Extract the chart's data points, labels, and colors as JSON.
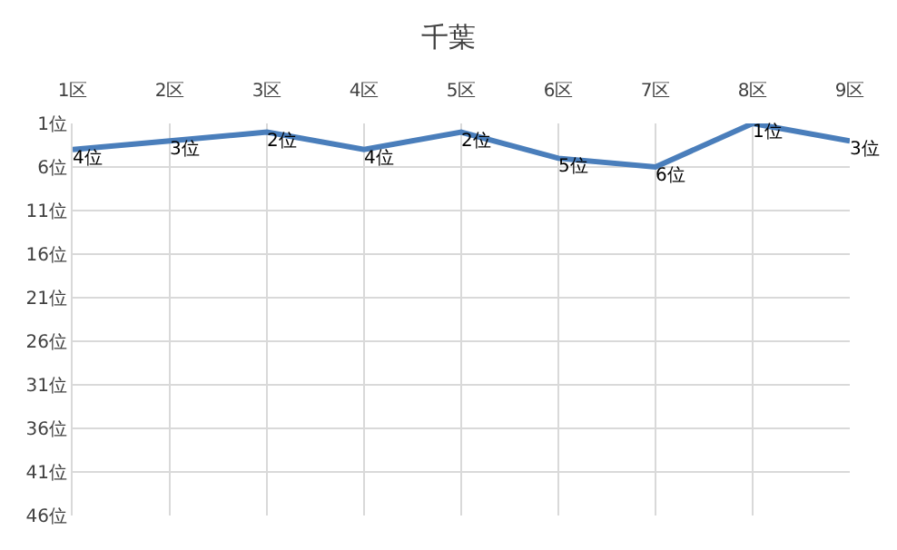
{
  "chart_data": {
    "type": "line",
    "title": "千葉",
    "categories": [
      "1区",
      "2区",
      "3区",
      "4区",
      "5区",
      "6区",
      "7区",
      "8区",
      "9区"
    ],
    "series": [
      {
        "color": "#4a7ebb",
        "values": [
          4,
          3,
          2,
          4,
          2,
          5,
          6,
          1,
          3
        ],
        "value_labels": [
          "4位",
          "3位",
          "2位",
          "4位",
          "2位",
          "5位",
          "6位",
          "1位",
          "3位"
        ]
      }
    ],
    "ylim": [
      46,
      1
    ],
    "yticks": [
      {
        "value": 1,
        "label": "1位"
      },
      {
        "value": 6,
        "label": "6位"
      },
      {
        "value": 11,
        "label": "11位"
      },
      {
        "value": 16,
        "label": "16位"
      },
      {
        "value": 21,
        "label": "21位"
      },
      {
        "value": 26,
        "label": "26位"
      },
      {
        "value": 31,
        "label": "31位"
      },
      {
        "value": 36,
        "label": "36位"
      },
      {
        "value": 41,
        "label": "41位"
      },
      {
        "value": 46,
        "label": "46位"
      }
    ],
    "grid": true,
    "marker": "none",
    "line_style": "solid"
  }
}
